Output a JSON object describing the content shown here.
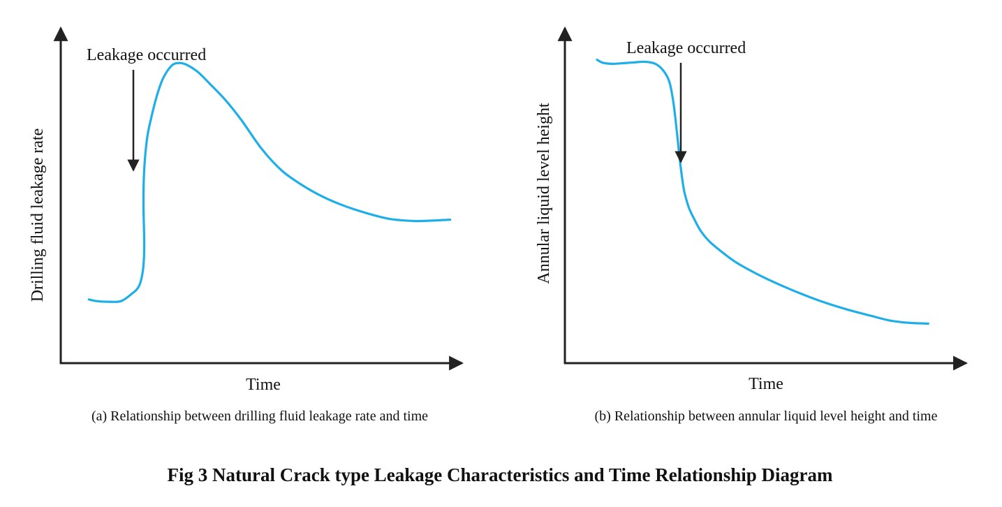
{
  "figure": {
    "title": "Fig 3 Natural Crack type Leakage Characteristics and Time Relationship Diagram"
  },
  "chart_data": [
    {
      "type": "line",
      "caption": "(a) Relationship between drilling fluid leakage rate and time",
      "xlabel": "Time",
      "ylabel": "Drilling fluid leakage rate",
      "xlim": [
        0,
        100
      ],
      "ylim": [
        0,
        100
      ],
      "grid": false,
      "series_color": "#1EAEE8",
      "x": [
        7,
        9,
        12,
        15,
        17.5,
        19.5,
        20.5,
        20.8,
        20.6,
        20.8,
        21.5,
        22.5,
        24,
        25.5,
        27.5,
        29,
        31,
        34,
        37,
        41,
        45,
        50,
        55,
        60,
        65,
        70,
        76,
        82,
        88,
        92,
        97
      ],
      "y": [
        19,
        18.5,
        18.3,
        18.5,
        20.5,
        23,
        28,
        35,
        48,
        58,
        67,
        73,
        80,
        85,
        88.6,
        89.5,
        89.2,
        87,
        83.5,
        78.5,
        72.5,
        64,
        57.5,
        53.2,
        49.8,
        47.2,
        44.8,
        43,
        42.4,
        42.5,
        42.8
      ],
      "annotations": [
        {
          "text": "Leakage occurred",
          "x": 14,
          "y": 62
        }
      ]
    },
    {
      "type": "line",
      "caption": "(b) Relationship between annular liquid level height and time",
      "xlabel": "Time",
      "ylabel": "Annular liquid level height",
      "xlim": [
        0,
        100
      ],
      "ylim": [
        0,
        100
      ],
      "grid": false,
      "series_color": "#1EAEE8",
      "x": [
        8,
        9.5,
        12,
        17,
        20,
        22.5,
        24.5,
        26,
        27,
        27.8,
        28.5,
        29,
        29.6,
        30.2,
        31,
        32.2,
        33.8,
        36,
        39.5,
        43,
        49,
        56,
        63,
        70,
        76,
        81,
        86,
        90.5
      ],
      "y": [
        90.5,
        89.6,
        89.3,
        89.7,
        89.9,
        89.3,
        87.3,
        84,
        78,
        70,
        62,
        57,
        52,
        49,
        46,
        43,
        39.5,
        36.3,
        32.8,
        29.8,
        25.9,
        22.1,
        18.8,
        16.1,
        14.2,
        12.7,
        12,
        11.8
      ],
      "annotations": [
        {
          "text": "Leakage occurred",
          "x": 29.5,
          "y": 78
        }
      ]
    }
  ]
}
